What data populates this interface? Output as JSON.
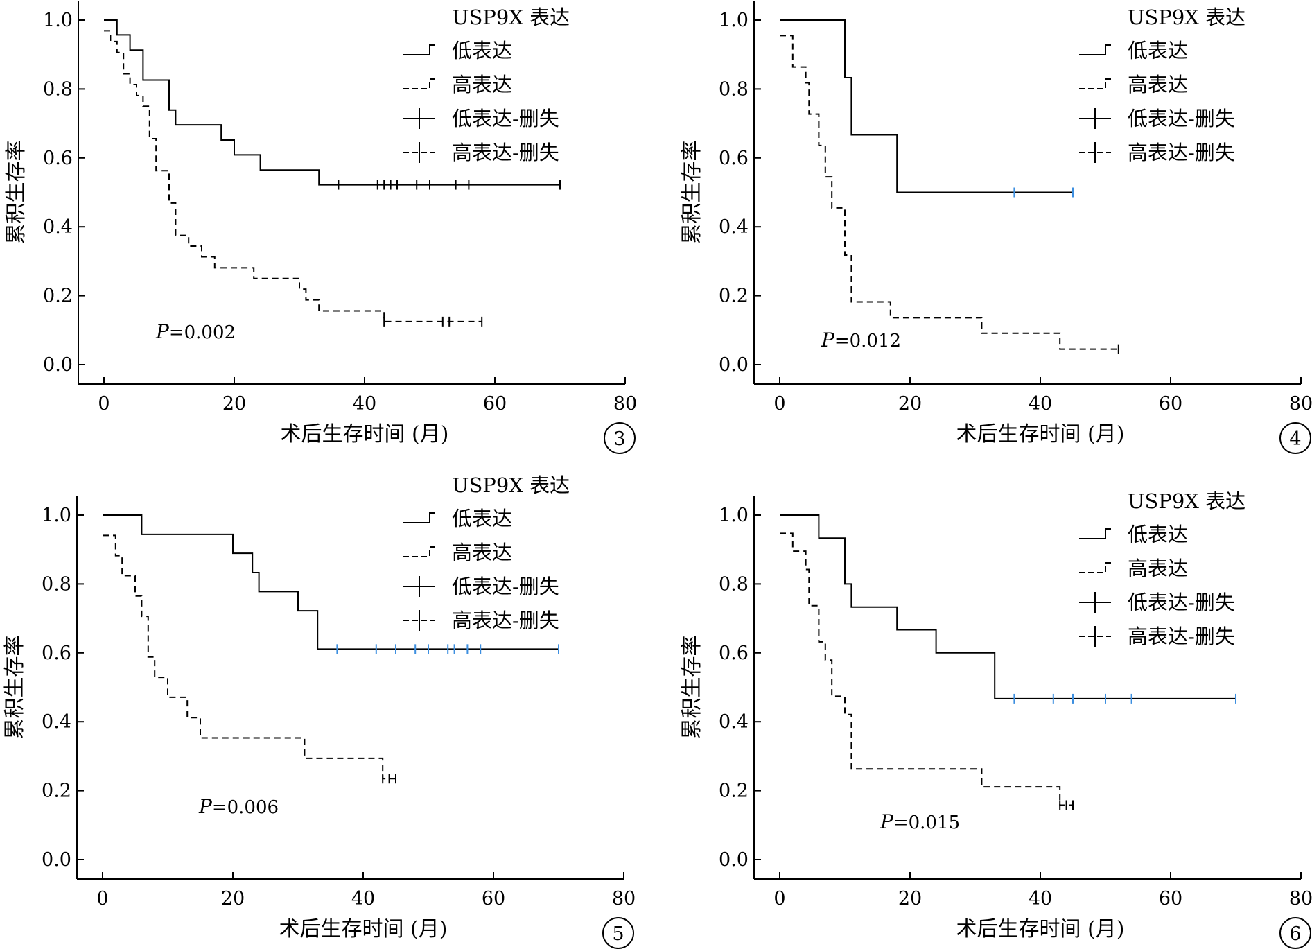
{
  "figure": {
    "xticks": [
      "0",
      "20",
      "40",
      "60",
      "80"
    ],
    "yticks": [
      "0.0",
      "0.2",
      "0.4",
      "0.6",
      "0.8",
      "1.0"
    ],
    "legend": {
      "title": "USP9X 表达",
      "low": "低表达",
      "high": "高表达",
      "low_censored": "低表达-删失",
      "high_censored": "高表达-删失"
    },
    "colors": {
      "line": "#000000",
      "low_censor_mark_panels_4_6": "#3d8fe0",
      "background": "#ffffff"
    }
  },
  "chart_data": [
    {
      "type": "line",
      "subtype": "kaplan-meier",
      "panel": "3",
      "xlabel": "术后生存时间 (月)",
      "ylabel": "累积生存率",
      "xlim": [
        0,
        80
      ],
      "ylim": [
        0,
        1.0
      ],
      "p_value": "P=0.002",
      "series": [
        {
          "name": "低表达",
          "line_style": "solid",
          "steps": [
            [
              0,
              1.0
            ],
            [
              2,
              0.957
            ],
            [
              4,
              0.913
            ],
            [
              6,
              0.826
            ],
            [
              10,
              0.739
            ],
            [
              11,
              0.696
            ],
            [
              18,
              0.652
            ],
            [
              20,
              0.609
            ],
            [
              24,
              0.565
            ],
            [
              33,
              0.522
            ],
            [
              70,
              0.522
            ]
          ],
          "censored": [
            36,
            42,
            43,
            44,
            45,
            48,
            50,
            54,
            56,
            70
          ]
        },
        {
          "name": "高表达",
          "line_style": "dashed",
          "steps": [
            [
              0,
              0.969
            ],
            [
              1,
              0.938
            ],
            [
              2,
              0.906
            ],
            [
              3,
              0.844
            ],
            [
              4,
              0.813
            ],
            [
              5,
              0.781
            ],
            [
              6,
              0.75
            ],
            [
              7,
              0.656
            ],
            [
              8,
              0.563
            ],
            [
              10,
              0.469
            ],
            [
              11,
              0.375
            ],
            [
              13,
              0.344
            ],
            [
              15,
              0.313
            ],
            [
              17,
              0.281
            ],
            [
              23,
              0.25
            ],
            [
              30,
              0.219
            ],
            [
              31,
              0.188
            ],
            [
              33,
              0.156
            ],
            [
              43,
              0.125
            ],
            [
              58,
              0.125
            ]
          ],
          "censored": [
            43,
            52,
            53,
            58
          ]
        }
      ]
    },
    {
      "type": "line",
      "subtype": "kaplan-meier",
      "panel": "4",
      "xlabel": "术后生存时间 (月)",
      "ylabel": "累积生存率",
      "xlim": [
        0,
        80
      ],
      "ylim": [
        0,
        1.0
      ],
      "p_value": "P=0.012",
      "series": [
        {
          "name": "低表达",
          "line_style": "solid",
          "steps": [
            [
              0,
              1.0
            ],
            [
              10,
              0.833
            ],
            [
              11,
              0.667
            ],
            [
              18,
              0.5
            ],
            [
              45,
              0.5
            ]
          ],
          "censored": [
            36,
            45
          ]
        },
        {
          "name": "高表达",
          "line_style": "dashed",
          "steps": [
            [
              0,
              0.955
            ],
            [
              2,
              0.864
            ],
            [
              4,
              0.818
            ],
            [
              4.5,
              0.727
            ],
            [
              6,
              0.636
            ],
            [
              7,
              0.545
            ],
            [
              8,
              0.455
            ],
            [
              10,
              0.318
            ],
            [
              11,
              0.182
            ],
            [
              17,
              0.136
            ],
            [
              31,
              0.091
            ],
            [
              43,
              0.045
            ],
            [
              52,
              0.045
            ]
          ],
          "censored": [
            52
          ]
        }
      ]
    },
    {
      "type": "line",
      "subtype": "kaplan-meier",
      "panel": "5",
      "xlabel": "术后生存时间 (月)",
      "ylabel": "累积生存率",
      "xlim": [
        0,
        80
      ],
      "ylim": [
        0,
        1.0
      ],
      "p_value": "P=0.006",
      "series": [
        {
          "name": "低表达",
          "line_style": "solid",
          "steps": [
            [
              0,
              1.0
            ],
            [
              6,
              0.944
            ],
            [
              20,
              0.889
            ],
            [
              23,
              0.833
            ],
            [
              24,
              0.778
            ],
            [
              30,
              0.722
            ],
            [
              33,
              0.611
            ],
            [
              70,
              0.611
            ]
          ],
          "censored": [
            36,
            42,
            45,
            48,
            50,
            53,
            54,
            56,
            58,
            70
          ]
        },
        {
          "name": "高表达",
          "line_style": "dashed",
          "steps": [
            [
              0,
              0.941
            ],
            [
              2,
              0.882
            ],
            [
              3,
              0.824
            ],
            [
              5,
              0.765
            ],
            [
              6,
              0.706
            ],
            [
              7,
              0.588
            ],
            [
              8,
              0.529
            ],
            [
              10,
              0.471
            ],
            [
              13,
              0.412
            ],
            [
              15,
              0.353
            ],
            [
              31,
              0.294
            ],
            [
              43,
              0.235
            ],
            [
              45,
              0.235
            ]
          ],
          "censored": [
            43,
            44,
            45
          ]
        }
      ]
    },
    {
      "type": "line",
      "subtype": "kaplan-meier",
      "panel": "6",
      "xlabel": "术后生存时间 (月)",
      "ylabel": "累积生存率",
      "xlim": [
        0,
        80
      ],
      "ylim": [
        0,
        1.0
      ],
      "p_value": "P=0.015",
      "series": [
        {
          "name": "低表达",
          "line_style": "solid",
          "steps": [
            [
              0,
              1.0
            ],
            [
              6,
              0.933
            ],
            [
              10,
              0.8
            ],
            [
              11,
              0.733
            ],
            [
              18,
              0.667
            ],
            [
              24,
              0.6
            ],
            [
              33,
              0.467
            ],
            [
              70,
              0.467
            ]
          ],
          "censored": [
            36,
            42,
            45,
            50,
            54,
            70
          ]
        },
        {
          "name": "高表达",
          "line_style": "dashed",
          "steps": [
            [
              0,
              0.947
            ],
            [
              2,
              0.895
            ],
            [
              4,
              0.842
            ],
            [
              4.5,
              0.737
            ],
            [
              6,
              0.632
            ],
            [
              7,
              0.579
            ],
            [
              8,
              0.474
            ],
            [
              10,
              0.421
            ],
            [
              11,
              0.263
            ],
            [
              31,
              0.211
            ],
            [
              43,
              0.158
            ],
            [
              45,
              0.158
            ]
          ],
          "censored": [
            43,
            44,
            45
          ]
        }
      ]
    }
  ]
}
